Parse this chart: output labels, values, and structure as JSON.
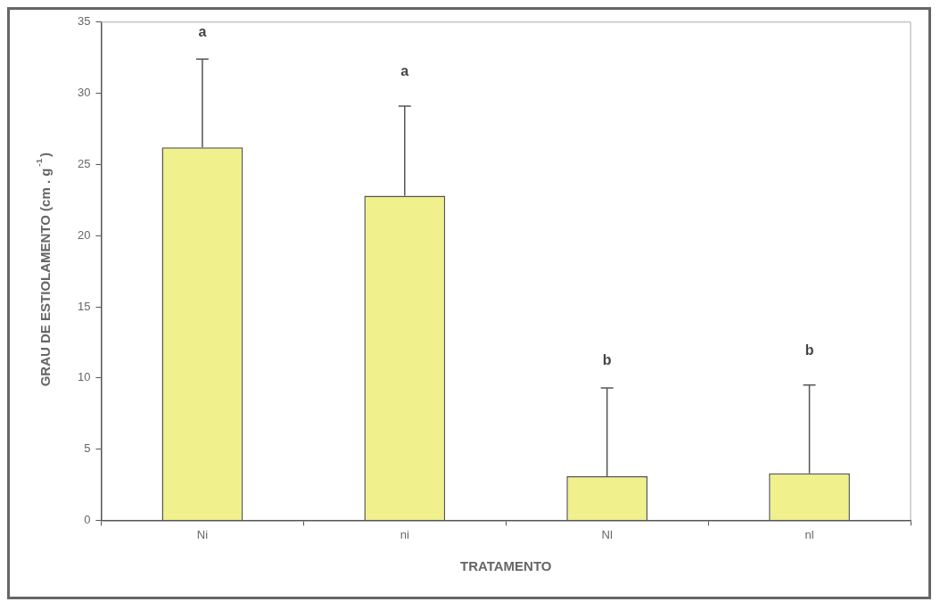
{
  "chart_data": {
    "type": "bar",
    "xlabel": "TRATAMENTO",
    "ylabel": "GRAU DE ESTIOLAMENTO (cm . g$^{-1}$)",
    "categories": [
      "Ni",
      "ni",
      "Nl",
      "nl"
    ],
    "values": [
      26.2,
      22.8,
      3.1,
      3.3
    ],
    "errors": [
      [
        26.2,
        32.4
      ],
      [
        22.8,
        29.1
      ],
      [
        3.1,
        9.3
      ],
      [
        3.3,
        9.5
      ]
    ],
    "color": "#f0f08c",
    "ylim": [
      0,
      35
    ],
    "yticks": [
      0,
      5,
      10,
      15,
      20,
      25,
      30,
      35
    ],
    "grid": false,
    "legend": false,
    "annotations": [
      "a",
      "a",
      "b",
      "b"
    ]
  }
}
